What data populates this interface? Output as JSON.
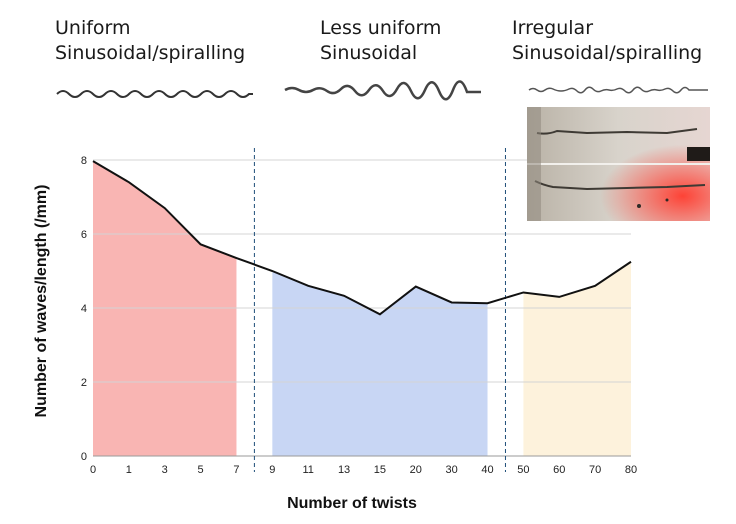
{
  "regimes": [
    {
      "line1": "Uniform",
      "line2": "Sinusoidal/spiralling"
    },
    {
      "line1": "Less uniform",
      "line2": "Sinusoidal"
    },
    {
      "line1": "Irregular",
      "line2": "Sinusoidal/spiralling"
    }
  ],
  "chart_data": {
    "type": "line",
    "xlabel": "Number of twists",
    "ylabel": "Number of waves/length (/mm)",
    "categories": [
      "0",
      "1",
      "3",
      "5",
      "7",
      "9",
      "11",
      "13",
      "15",
      "20",
      "30",
      "40",
      "50",
      "60",
      "70",
      "80"
    ],
    "values": [
      7.97,
      7.4,
      6.7,
      5.72,
      5.35,
      5.0,
      4.6,
      4.33,
      3.83,
      4.58,
      4.15,
      4.13,
      4.42,
      4.3,
      4.6,
      5.25
    ],
    "yticks": [
      0,
      2,
      4,
      6,
      8
    ],
    "ylim": [
      0,
      8
    ],
    "grid": true,
    "regions": [
      {
        "from": "0",
        "to": "7",
        "color": "#f9b5b3"
      },
      {
        "from": "9",
        "to": "40",
        "color": "#c8d6f4"
      },
      {
        "from": "50",
        "to": "80",
        "color": "#fdf2dc"
      }
    ],
    "dividers": [
      {
        "between": [
          "7",
          "9"
        ]
      },
      {
        "between": [
          "40",
          "50"
        ]
      }
    ],
    "line_color": "#111111",
    "divider_color": "#1f4e79"
  }
}
